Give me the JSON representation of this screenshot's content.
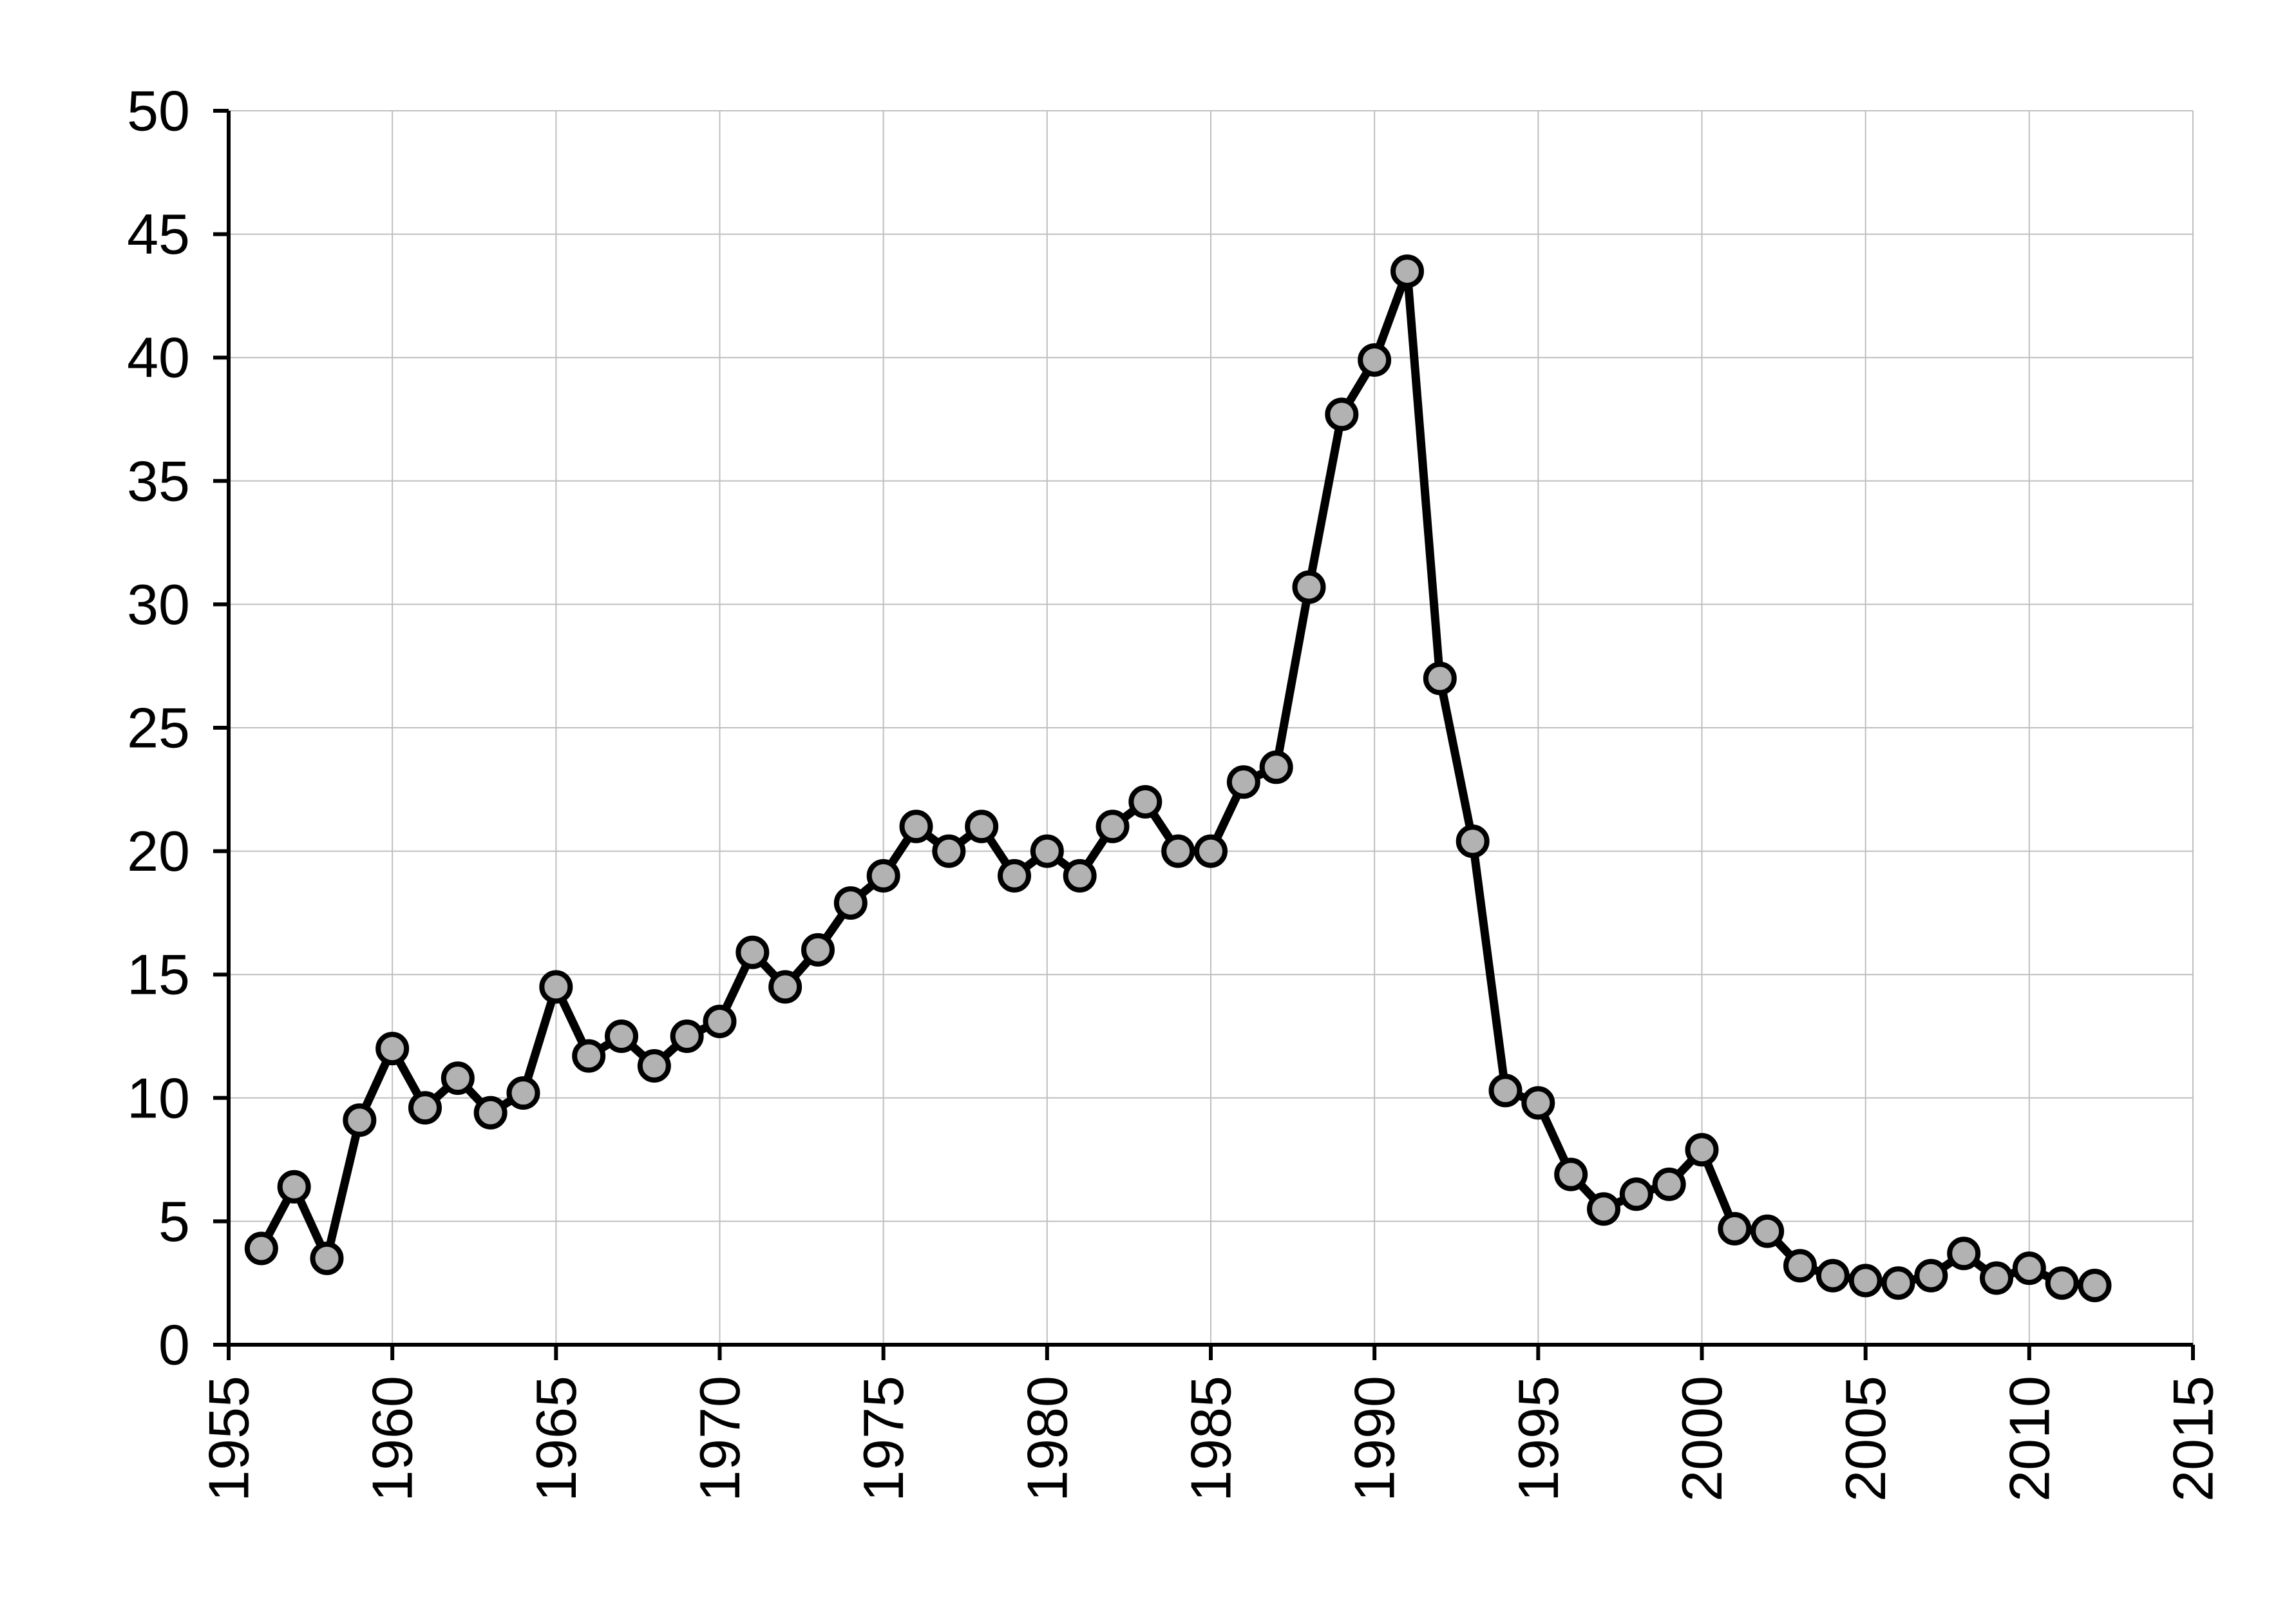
{
  "chart_data": {
    "type": "line",
    "title": "",
    "xlabel": "",
    "ylabel": "",
    "xlim": [
      1955,
      2015
    ],
    "ylim": [
      0,
      50
    ],
    "x_ticks": [
      1955,
      1960,
      1965,
      1970,
      1975,
      1980,
      1985,
      1990,
      1995,
      2000,
      2005,
      2010,
      2015
    ],
    "y_ticks": [
      0,
      5,
      10,
      15,
      20,
      25,
      30,
      35,
      40,
      45,
      50
    ],
    "x_tick_labels": [
      "1955",
      "1960",
      "1965",
      "1970",
      "1975",
      "1980",
      "1985",
      "1990",
      "1995",
      "2000",
      "2005",
      "2010",
      "2015"
    ],
    "y_tick_labels": [
      "0",
      "5",
      "10",
      "15",
      "20",
      "25",
      "30",
      "35",
      "40",
      "45",
      "50"
    ],
    "grid": true,
    "legend": "none",
    "line_color": "#000000",
    "marker_fill": "#b2b2b2",
    "marker_stroke": "#000000",
    "series": [
      {
        "x": [
          1956,
          1957,
          1958,
          1959,
          1960,
          1961,
          1962,
          1963,
          1964,
          1965,
          1966,
          1967,
          1968,
          1969,
          1970,
          1971,
          1972,
          1973,
          1974,
          1975,
          1976,
          1977,
          1978,
          1979,
          1980,
          1981,
          1982,
          1983,
          1984,
          1985,
          1986,
          1987,
          1988,
          1989,
          1990,
          1991,
          1992,
          1993,
          1994,
          1995,
          1996,
          1997,
          1998,
          1999,
          2000,
          2001,
          2002,
          2003,
          2004,
          2005,
          2006,
          2007,
          2008,
          2009,
          2010,
          2011,
          2012
        ],
        "y": [
          3.9,
          6.4,
          3.5,
          9.1,
          12.0,
          9.6,
          10.8,
          9.4,
          10.2,
          14.5,
          11.7,
          12.5,
          11.3,
          12.5,
          13.1,
          15.9,
          14.5,
          16.0,
          17.9,
          19.0,
          21.0,
          20.0,
          21.0,
          19.0,
          20.0,
          19.0,
          21.0,
          22.0,
          20.0,
          20.0,
          22.8,
          23.4,
          30.7,
          37.7,
          39.9,
          43.5,
          27.0,
          20.4,
          10.3,
          9.8,
          6.9,
          5.5,
          6.1,
          6.5,
          7.9,
          4.7,
          4.6,
          3.2,
          2.8,
          2.6,
          2.5,
          2.8,
          3.7,
          2.7,
          3.1,
          2.5,
          2.4
        ]
      }
    ]
  }
}
